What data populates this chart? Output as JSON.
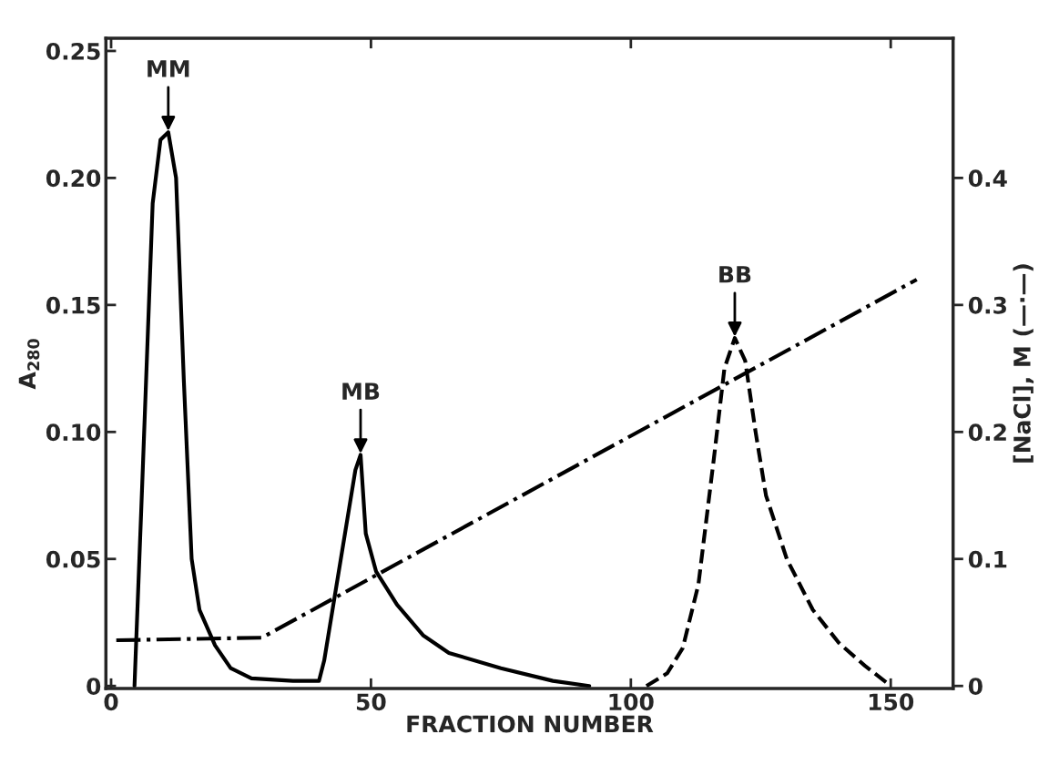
{
  "chart_data": {
    "type": "line",
    "xlabel": "FRACTION NUMBER",
    "ylabel": "A$_{280}$",
    "y2label": "[NaCl], M (—·—)",
    "xlim": [
      -1,
      162
    ],
    "xticks": [
      0,
      50,
      100,
      150
    ],
    "ylim": [
      -0.001,
      0.255
    ],
    "yticks": [
      0,
      0.05,
      {
        "value": 0.1,
        "label": "0.10"
      },
      0.15,
      {
        "value": 0.2,
        "label": "0.20"
      },
      0.25
    ],
    "y2lim": [
      -0.002,
      0.51
    ],
    "y2ticks": [
      0,
      0.1,
      0.2,
      0.3,
      0.4
    ],
    "series": [
      {
        "color": "#000000",
        "line_style": "solid",
        "x": [
          4.5,
          6,
          8,
          9.5,
          11,
          12.5,
          14,
          15.5,
          17,
          20,
          23,
          27,
          35,
          40,
          41,
          43,
          45,
          47,
          48,
          49,
          51,
          55,
          60,
          65,
          75,
          85,
          92
        ],
        "values": [
          0,
          0.08,
          0.19,
          0.215,
          0.218,
          0.2,
          0.12,
          0.05,
          0.03,
          0.016,
          0.007,
          0.003,
          0.002,
          0.002,
          0.01,
          0.035,
          0.06,
          0.085,
          0.091,
          0.06,
          0.045,
          0.032,
          0.02,
          0.013,
          0.007,
          0.002,
          0
        ]
      },
      {
        "color": "#000000",
        "line_style": "dashed",
        "x": [
          103,
          107,
          110,
          113,
          116,
          118,
          120,
          122,
          124,
          126,
          130,
          135,
          140,
          145,
          150
        ],
        "values": [
          0,
          0.005,
          0.015,
          0.04,
          0.09,
          0.125,
          0.137,
          0.128,
          0.1,
          0.075,
          0.05,
          0.03,
          0.017,
          0.008,
          0
        ]
      },
      {
        "color": "#000000",
        "line_style": "dashdot",
        "axis": "y2",
        "x": [
          1,
          29,
          155
        ],
        "values": [
          0.036,
          0.038,
          0.32
        ]
      }
    ],
    "annotations": [
      {
        "text": "MM",
        "x": 11,
        "y": 0.218
      },
      {
        "text": "MB",
        "x": 48,
        "y": 0.091
      },
      {
        "text": "BB",
        "x": 120,
        "y": 0.137
      }
    ],
    "grid": false
  }
}
